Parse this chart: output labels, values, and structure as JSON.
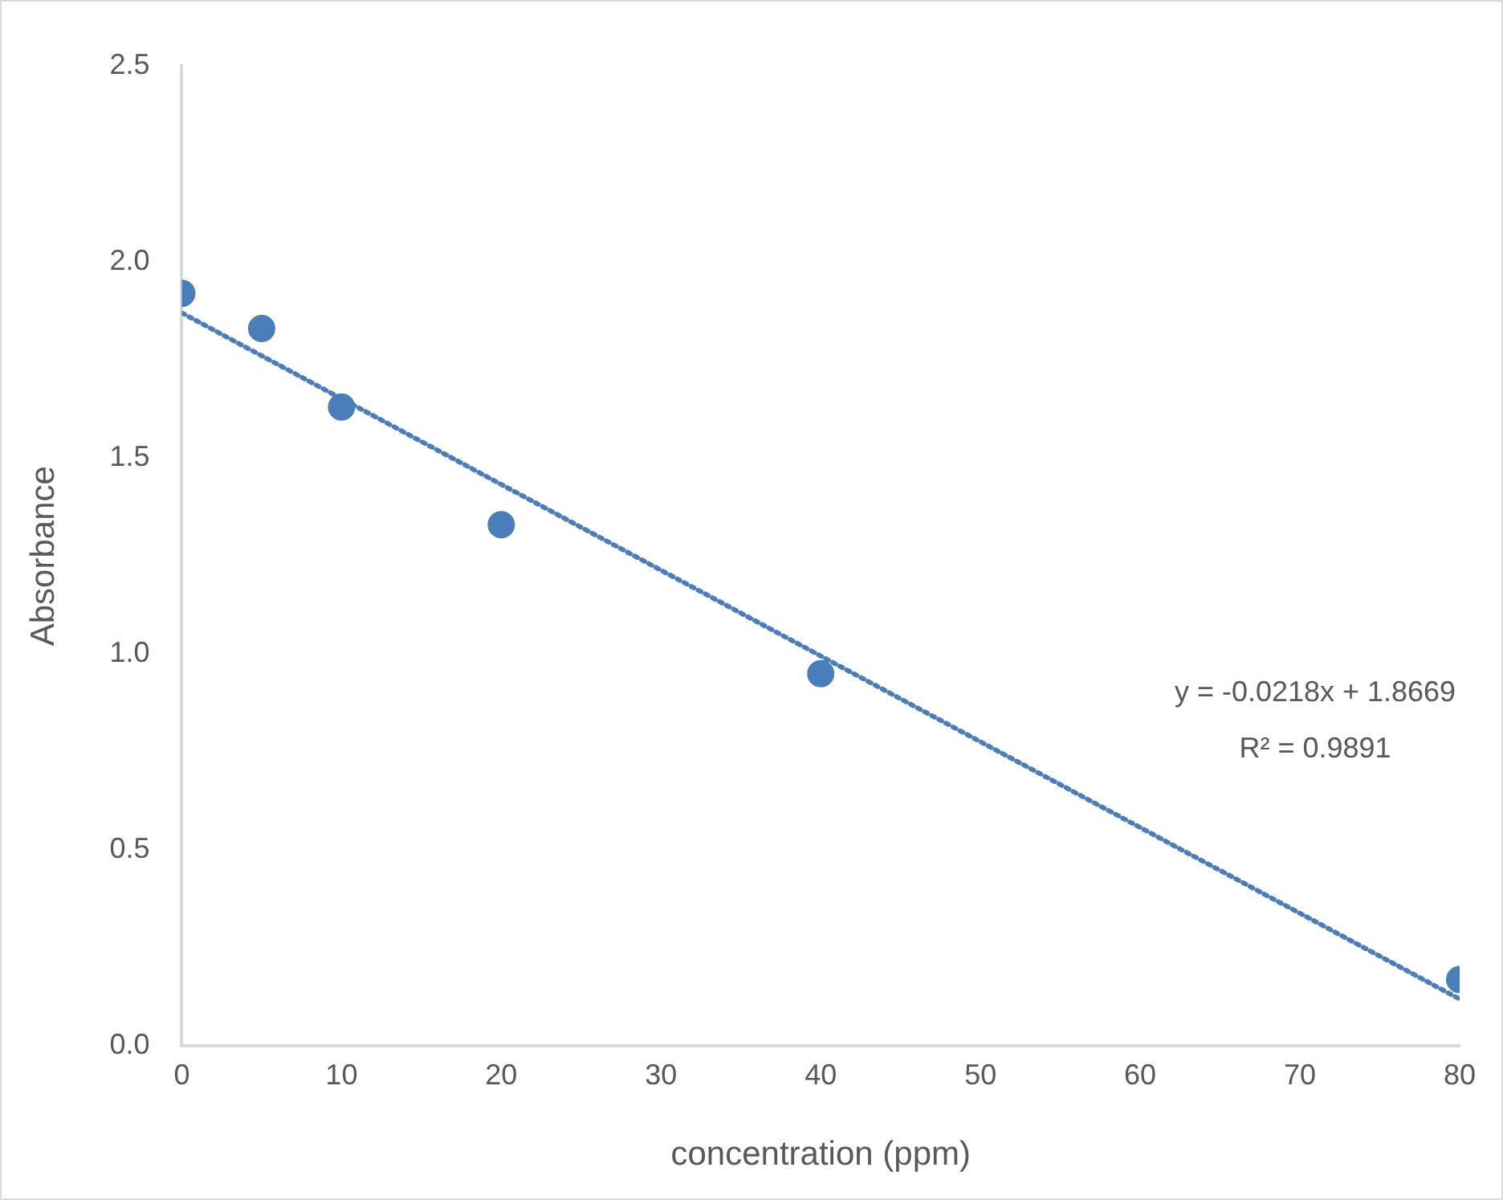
{
  "chart_data": {
    "type": "scatter",
    "xlabel": "concentration (ppm)",
    "ylabel": "Absorbance",
    "xlim": [
      0,
      80
    ],
    "xticks": [
      0,
      10,
      20,
      30,
      40,
      50,
      60,
      70,
      80
    ],
    "ylim": [
      0,
      2.5
    ],
    "yticks": [
      {
        "value": 0,
        "label": "0.0"
      },
      {
        "value": 0.5,
        "label": "0.5"
      },
      {
        "value": 1,
        "label": "1.0"
      },
      {
        "value": 1.5,
        "label": "1.5"
      },
      {
        "value": 2,
        "label": "2.0"
      },
      {
        "value": 2.5,
        "label": "2.5"
      }
    ],
    "grid": false,
    "legend": false,
    "marker": "circle",
    "series": [
      {
        "color": "#4a7ebb",
        "x": [
          0,
          5,
          10,
          20,
          40,
          80
        ],
        "values": [
          1.92,
          1.83,
          1.63,
          1.33,
          0.95,
          0.17
        ]
      },
      {
        "type": "line",
        "color": "#4a7ebb",
        "line_style": "dotted",
        "marker": "none",
        "x": [
          0,
          80
        ],
        "values": [
          1.87,
          0.12
        ]
      }
    ],
    "annotations": [
      "y = -0.0218x + 1.8669",
      "R² = 0.9891"
    ]
  }
}
